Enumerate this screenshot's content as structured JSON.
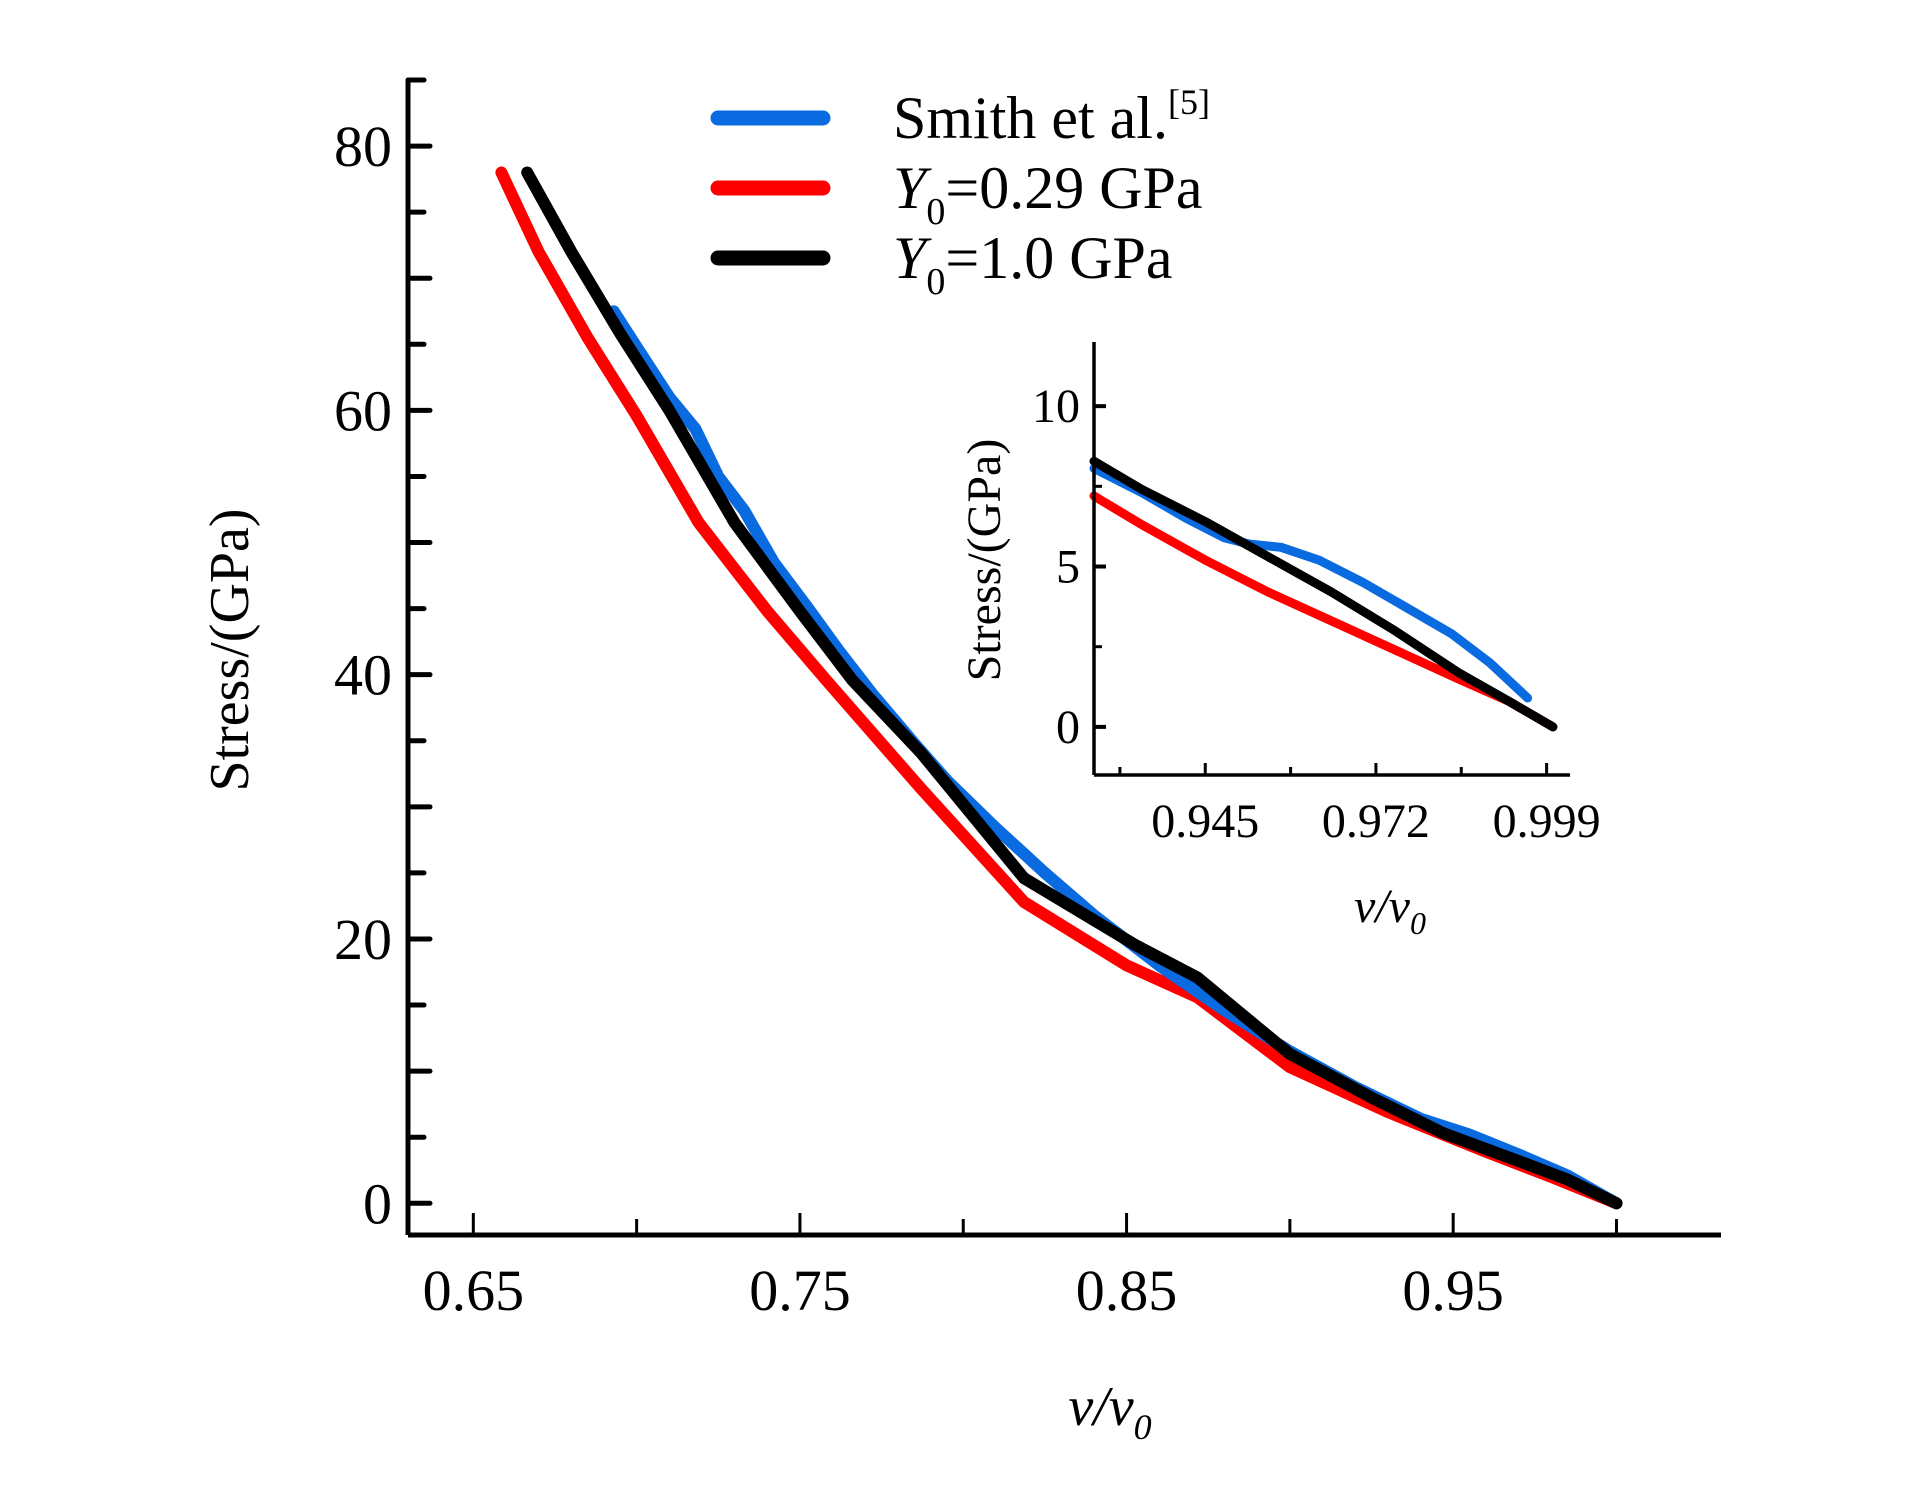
{
  "chart_data": [
    {
      "type": "line",
      "title": "",
      "xlabel": "v/v0",
      "xlabel_main": "v/v",
      "xlabel_sub": "0",
      "ylabel": "Stress/(GPa)",
      "xlim": [
        0.63,
        1.032
      ],
      "ylim": [
        -2.4,
        85
      ],
      "x_ticks": [
        0.65,
        0.75,
        0.85,
        0.95
      ],
      "x_tick_labels": [
        "0.65",
        "0.75",
        "0.85",
        "0.95"
      ],
      "x_minor_ticks": [
        0.7,
        0.8,
        0.9,
        1.0
      ],
      "y_ticks": [
        0,
        20,
        40,
        60,
        80
      ],
      "y_tick_labels": [
        "0",
        "20",
        "40",
        "60",
        "80"
      ],
      "y_minor_step": 5,
      "grid": false,
      "legend_position": "top-center",
      "series": [
        {
          "name": "Smith et al.[5]",
          "color": "#0a6ae0",
          "x": [
            0.693,
            0.7,
            0.71,
            0.718,
            0.725,
            0.733,
            0.742,
            0.752,
            0.762,
            0.772,
            0.785,
            0.795,
            0.81,
            0.825,
            0.84,
            0.86,
            0.88,
            0.9,
            0.92,
            0.94,
            0.955,
            0.97,
            0.985,
            1.0
          ],
          "y": [
            67.5,
            64.8,
            61.0,
            58.6,
            55.0,
            52.4,
            48.5,
            45.2,
            41.8,
            38.6,
            34.8,
            32.0,
            28.4,
            25.0,
            21.8,
            18.0,
            14.6,
            11.5,
            8.8,
            6.4,
            5.2,
            3.7,
            2.1,
            0.0
          ]
        },
        {
          "name": "Y0=0.29 GPa",
          "color": "#ff0000",
          "x": [
            0.6586,
            0.67,
            0.685,
            0.7,
            0.719,
            0.74,
            0.758,
            0.787,
            0.8186,
            0.85,
            0.8716,
            0.9,
            0.93,
            0.96,
            0.98,
            1.0
          ],
          "y": [
            78.0,
            72.0,
            65.5,
            59.6,
            51.5,
            44.8,
            39.6,
            31.4,
            22.8,
            18.0,
            15.6,
            10.3,
            6.9,
            3.9,
            2.0,
            0.0
          ]
        },
        {
          "name": "Y0=1.0 GPa",
          "color": "#000000",
          "x": [
            0.6665,
            0.68,
            0.695,
            0.71,
            0.73,
            0.75,
            0.766,
            0.787,
            0.8186,
            0.853,
            0.8716,
            0.9,
            0.925,
            0.947,
            0.97,
            0.985,
            1.0
          ],
          "y": [
            78.0,
            72.0,
            65.8,
            60.0,
            51.5,
            44.8,
            39.6,
            34.1,
            24.6,
            19.5,
            17.1,
            11.3,
            8.0,
            5.3,
            3.2,
            1.8,
            0.0
          ]
        }
      ]
    },
    {
      "type": "line",
      "title": "inset",
      "xlabel": "v/v0",
      "xlabel_main": "v/v",
      "xlabel_sub": "0",
      "ylabel": "Stress/(GPa)",
      "xlim": [
        0.9274,
        1.0027
      ],
      "ylim": [
        -1.5,
        12
      ],
      "x_ticks": [
        0.945,
        0.972,
        0.999
      ],
      "x_tick_labels": [
        "0.945",
        "0.972",
        "0.999"
      ],
      "x_minor_ticks": [
        0.9315,
        0.9585,
        0.9855
      ],
      "y_ticks": [
        0,
        5,
        10
      ],
      "y_tick_labels": [
        "0",
        "5",
        "10"
      ],
      "y_minor_ticks": [
        2.5,
        7.5
      ],
      "grid": false,
      "series": [
        {
          "name": "Smith et al.[5]",
          "color": "#0a6ae0",
          "x": [
            0.9274,
            0.935,
            0.942,
            0.948,
            0.952,
            0.957,
            0.963,
            0.97,
            0.977,
            0.984,
            0.99,
            0.996
          ],
          "y": [
            8.06,
            7.3,
            6.5,
            5.9,
            5.7,
            5.6,
            5.2,
            4.5,
            3.7,
            2.9,
            2.0,
            0.9
          ]
        },
        {
          "name": "Y0=0.29 GPa",
          "color": "#ff0000",
          "x": [
            0.9274,
            0.935,
            0.945,
            0.955,
            0.965,
            0.975,
            0.985,
            0.993,
            1.0
          ],
          "y": [
            7.2,
            6.3,
            5.2,
            4.2,
            3.3,
            2.4,
            1.5,
            0.8,
            0.0
          ]
        },
        {
          "name": "Y0=1.0 GPa",
          "color": "#000000",
          "x": [
            0.9274,
            0.935,
            0.945,
            0.955,
            0.965,
            0.975,
            0.985,
            0.993,
            1.0
          ],
          "y": [
            8.28,
            7.4,
            6.4,
            5.3,
            4.2,
            3.0,
            1.7,
            0.8,
            0.0
          ]
        }
      ]
    }
  ],
  "legend": {
    "items": [
      {
        "label": "Smith et al.",
        "superscript": "[5]",
        "italic_prefix": "",
        "subscript": "",
        "color": "#0a6ae0"
      },
      {
        "label": "=0.29 GPa",
        "superscript": "",
        "italic_prefix": "Y",
        "subscript": "0",
        "color": "#ff0000"
      },
      {
        "label": "=1.0 GPa",
        "superscript": "",
        "italic_prefix": "Y",
        "subscript": "0",
        "color": "#000000"
      }
    ]
  }
}
